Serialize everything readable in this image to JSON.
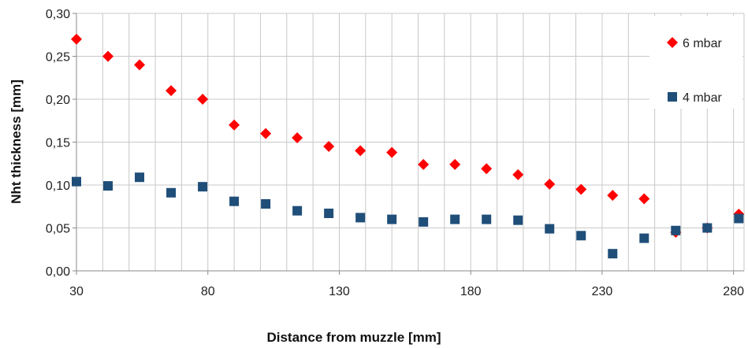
{
  "chart_data": {
    "type": "scatter",
    "xlabel": "Distance from muzzle [mm]",
    "ylabel": "Nht thickness [mm]",
    "xlim": [
      30,
      284
    ],
    "ylim": [
      0,
      0.3
    ],
    "x_ticks": [
      30,
      80,
      130,
      180,
      230,
      280
    ],
    "x_tick_labels": [
      "30",
      "80",
      "130",
      "180",
      "230",
      "280"
    ],
    "y_ticks": [
      0,
      0.05,
      0.1,
      0.15,
      0.2,
      0.25,
      0.3
    ],
    "y_tick_labels": [
      "0,00",
      "0,05",
      "0,10",
      "0,15",
      "0,20",
      "0,25",
      "0,30"
    ],
    "vertical_grid_step": 10,
    "grid": true,
    "legend_position": "right",
    "series": [
      {
        "name": "6 mbar",
        "marker": "diamond",
        "color": "#ff0000",
        "x": [
          30,
          42,
          54,
          66,
          78,
          90,
          102,
          114,
          126,
          138,
          150,
          162,
          174,
          186,
          198,
          210,
          222,
          234,
          246,
          258,
          270,
          282
        ],
        "y": [
          0.27,
          0.25,
          0.24,
          0.21,
          0.2,
          0.17,
          0.16,
          0.155,
          0.145,
          0.14,
          0.138,
          0.124,
          0.124,
          0.119,
          0.112,
          0.101,
          0.095,
          0.088,
          0.084,
          0.045,
          0.05,
          0.066
        ]
      },
      {
        "name": "4 mbar",
        "marker": "square",
        "color": "#1f4e79",
        "x": [
          30,
          42,
          54,
          66,
          78,
          90,
          102,
          114,
          126,
          138,
          150,
          162,
          174,
          186,
          198,
          210,
          222,
          234,
          246,
          258,
          270,
          282
        ],
        "y": [
          0.104,
          0.099,
          0.109,
          0.091,
          0.098,
          0.081,
          0.078,
          0.07,
          0.067,
          0.062,
          0.06,
          0.057,
          0.06,
          0.06,
          0.059,
          0.049,
          0.041,
          0.02,
          0.038,
          0.047,
          0.05,
          0.061
        ]
      }
    ]
  }
}
